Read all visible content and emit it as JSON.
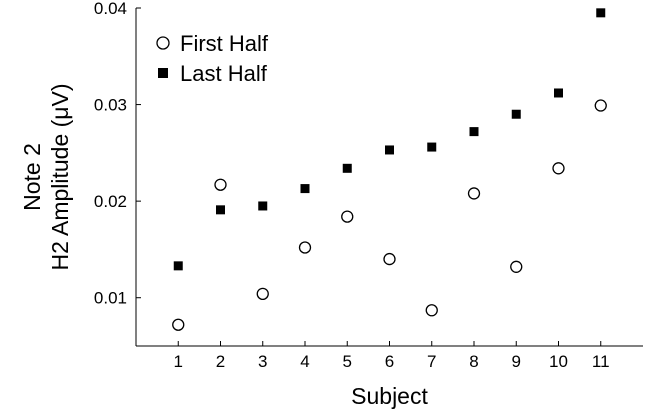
{
  "chart_data": {
    "type": "scatter",
    "title": "",
    "xlabel": "Subject",
    "ylabel": [
      "Note 2",
      "H2 Amplitude (μV)"
    ],
    "xlim": [
      0,
      12
    ],
    "ylim": [
      0.005,
      0.04
    ],
    "xticks": [
      1,
      2,
      3,
      4,
      5,
      6,
      7,
      8,
      9,
      10,
      11
    ],
    "xtick_labels": [
      "1",
      "2",
      "3",
      "4",
      "5",
      "6",
      "7",
      "8",
      "9",
      "10",
      "11"
    ],
    "yticks": [
      0.01,
      0.02,
      0.03,
      0.04
    ],
    "ytick_labels": [
      "0.01",
      "0.02",
      "0.03",
      "0.04"
    ],
    "grid": false,
    "legend_position": "top-left",
    "series": [
      {
        "name": "First Half",
        "marker": "open-circle",
        "x": [
          1,
          2,
          3,
          4,
          5,
          6,
          7,
          8,
          9,
          10,
          11
        ],
        "y": [
          0.0072,
          0.0217,
          0.0104,
          0.0152,
          0.0184,
          0.014,
          0.0087,
          0.0208,
          0.0132,
          0.0234,
          0.0299
        ]
      },
      {
        "name": "Last Half",
        "marker": "filled-square",
        "x": [
          1,
          2,
          3,
          4,
          5,
          6,
          7,
          8,
          9,
          10,
          11
        ],
        "y": [
          0.0133,
          0.0191,
          0.0195,
          0.0213,
          0.0234,
          0.0253,
          0.0256,
          0.0272,
          0.029,
          0.0312,
          0.0395
        ]
      }
    ]
  }
}
